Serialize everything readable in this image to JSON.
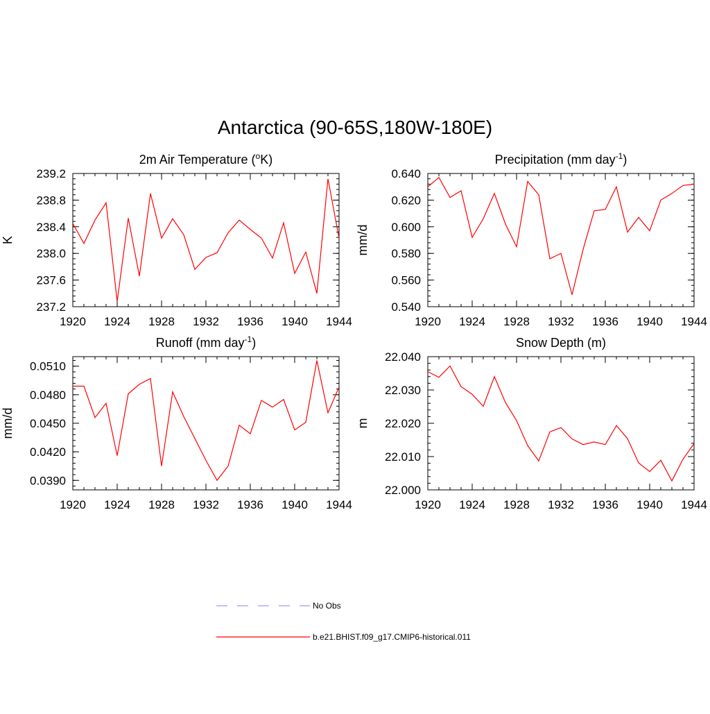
{
  "page": {
    "title": "Antarctica (90-65S,180W-180E)"
  },
  "legend": {
    "items": [
      {
        "label": "No Obs",
        "color": "#9999ff",
        "dashed": true
      },
      {
        "label": "b.e21.BHIST.f09_g17.CMIP6-historical.011",
        "color": "#ff0000",
        "dashed": false
      }
    ]
  },
  "chart_data": [
    {
      "type": "line",
      "title": "2m Air Temperature (",
      "title_sup": "o",
      "title_after": "K)",
      "ylabel": "K",
      "xlabel": "",
      "xlim": [
        1920,
        1944
      ],
      "ylim": [
        237.2,
        239.2
      ],
      "x_ticks": [
        1920,
        1924,
        1928,
        1932,
        1936,
        1940,
        1944
      ],
      "y_ticks": [
        "237.2",
        "237.6",
        "238.0",
        "238.4",
        "238.8",
        "239.2"
      ],
      "x": [
        1920,
        1921,
        1922,
        1923,
        1924,
        1925,
        1926,
        1927,
        1928,
        1929,
        1930,
        1931,
        1932,
        1933,
        1934,
        1935,
        1936,
        1937,
        1938,
        1939,
        1940,
        1941,
        1942,
        1943,
        1944
      ],
      "series": [
        {
          "name": "b.e21.BHIST.f09_g17.CMIP6-historical.011",
          "color": "#ff0000",
          "values": [
            238.45,
            238.15,
            238.5,
            238.76,
            237.28,
            238.53,
            237.66,
            238.9,
            238.23,
            238.52,
            238.28,
            237.76,
            237.94,
            238.01,
            238.31,
            238.5,
            238.36,
            238.23,
            237.93,
            238.46,
            237.7,
            238.02,
            237.4,
            239.12,
            238.23
          ]
        }
      ]
    },
    {
      "type": "line",
      "title": "Precipitation (mm day",
      "title_sup": "-1",
      "title_after": ")",
      "ylabel": "mm/d",
      "xlabel": "",
      "xlim": [
        1920,
        1944
      ],
      "ylim": [
        0.54,
        0.64
      ],
      "x_ticks": [
        1920,
        1924,
        1928,
        1932,
        1936,
        1940,
        1944
      ],
      "y_ticks": [
        "0.540",
        "0.560",
        "0.580",
        "0.600",
        "0.620",
        "0.640"
      ],
      "x": [
        1920,
        1921,
        1922,
        1923,
        1924,
        1925,
        1926,
        1927,
        1928,
        1929,
        1930,
        1931,
        1932,
        1933,
        1934,
        1935,
        1936,
        1937,
        1938,
        1939,
        1940,
        1941,
        1942,
        1943,
        1944
      ],
      "series": [
        {
          "name": "b.e21.BHIST.f09_g17.CMIP6-historical.011",
          "color": "#ff0000",
          "values": [
            0.63,
            0.637,
            0.622,
            0.627,
            0.592,
            0.606,
            0.625,
            0.602,
            0.585,
            0.634,
            0.624,
            0.576,
            0.58,
            0.549,
            0.583,
            0.612,
            0.613,
            0.63,
            0.596,
            0.607,
            0.597,
            0.62,
            0.625,
            0.631,
            0.632
          ]
        }
      ]
    },
    {
      "type": "line",
      "title": "Runoff (mm day",
      "title_sup": "-1",
      "title_after": ")",
      "ylabel": "mm/d",
      "xlabel": "",
      "xlim": [
        1920,
        1944
      ],
      "ylim": [
        0.038,
        0.052
      ],
      "x_ticks": [
        1920,
        1924,
        1928,
        1932,
        1936,
        1940,
        1944
      ],
      "y_ticks": [
        "0.0390",
        "0.0420",
        "0.0450",
        "0.0480",
        "0.0510"
      ],
      "y_tick_values": [
        0.039,
        0.042,
        0.045,
        0.048,
        0.051
      ],
      "x": [
        1920,
        1921,
        1922,
        1923,
        1924,
        1925,
        1926,
        1927,
        1928,
        1929,
        1930,
        1931,
        1932,
        1933,
        1934,
        1935,
        1936,
        1937,
        1938,
        1939,
        1940,
        1941,
        1942,
        1943,
        1944
      ],
      "series": [
        {
          "name": "b.e21.BHIST.f09_g17.CMIP6-historical.011",
          "color": "#ff0000",
          "values": [
            0.0489,
            0.0489,
            0.0456,
            0.0471,
            0.0416,
            0.0481,
            0.0491,
            0.0497,
            0.0405,
            0.0483,
            0.0457,
            0.0434,
            0.0411,
            0.039,
            0.0405,
            0.0448,
            0.0439,
            0.0474,
            0.0467,
            0.0475,
            0.0443,
            0.0451,
            0.0516,
            0.0461,
            0.0488
          ]
        }
      ]
    },
    {
      "type": "line",
      "title": "Snow Depth (m)",
      "title_sup": "",
      "title_after": "",
      "ylabel": "m",
      "xlabel": "",
      "xlim": [
        1920,
        1944
      ],
      "ylim": [
        22.0,
        22.04
      ],
      "x_ticks": [
        1920,
        1924,
        1928,
        1932,
        1936,
        1940,
        1944
      ],
      "y_ticks": [
        "22.000",
        "22.010",
        "22.020",
        "22.030",
        "22.040"
      ],
      "x": [
        1920,
        1921,
        1922,
        1923,
        1924,
        1925,
        1926,
        1927,
        1928,
        1929,
        1930,
        1931,
        1932,
        1933,
        1934,
        1935,
        1936,
        1937,
        1938,
        1939,
        1940,
        1941,
        1942,
        1943,
        1944
      ],
      "series": [
        {
          "name": "b.e21.BHIST.f09_g17.CMIP6-historical.011",
          "color": "#ff0000",
          "values": [
            22.0355,
            22.0338,
            22.0372,
            22.031,
            22.0287,
            22.0251,
            22.034,
            22.0262,
            22.0208,
            22.0133,
            22.0087,
            22.0174,
            22.0187,
            22.0153,
            22.0136,
            22.0144,
            22.0136,
            22.0193,
            22.0154,
            22.0081,
            22.0055,
            22.0089,
            22.0027,
            22.0092,
            22.0139
          ]
        }
      ]
    }
  ]
}
